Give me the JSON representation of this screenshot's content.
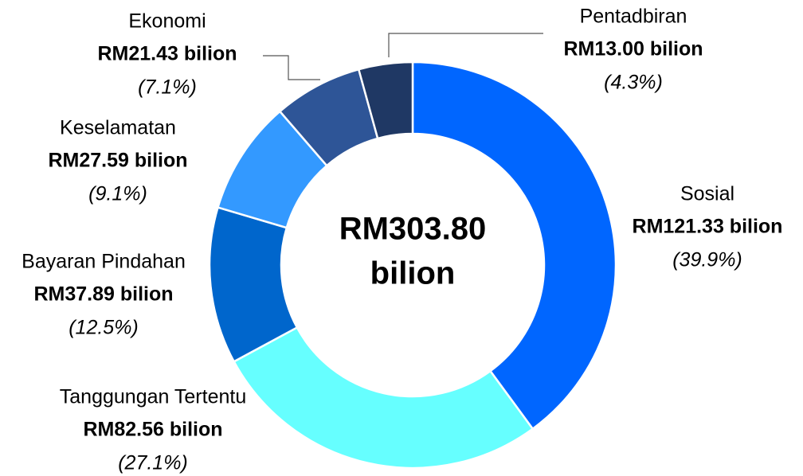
{
  "chart_data": {
    "type": "donut",
    "center_label": [
      "RM303.80",
      "bilion"
    ],
    "categories": [
      "Sosial",
      "Tanggungan Tertentu",
      "Bayaran Pindahan",
      "Keselamatan",
      "Ekonomi",
      "Pentadbiran"
    ],
    "values": [
      121.33,
      82.56,
      37.89,
      27.59,
      21.43,
      13.0
    ],
    "value_labels": [
      "RM121.33 bilion",
      "RM82.56 bilion",
      "RM37.89 bilion",
      "RM27.59 bilion",
      "RM21.43 bilion",
      "RM13.00 bilion"
    ],
    "percent_labels": [
      "(39.9%)",
      "(27.1%)",
      "(12.5%)",
      "(9.1%)",
      "(7.1%)",
      "(4.3%)"
    ],
    "colors": [
      "#0066ff",
      "#66ffff",
      "#0066cc",
      "#3399ff",
      "#2e5597",
      "#1f3864"
    ]
  }
}
